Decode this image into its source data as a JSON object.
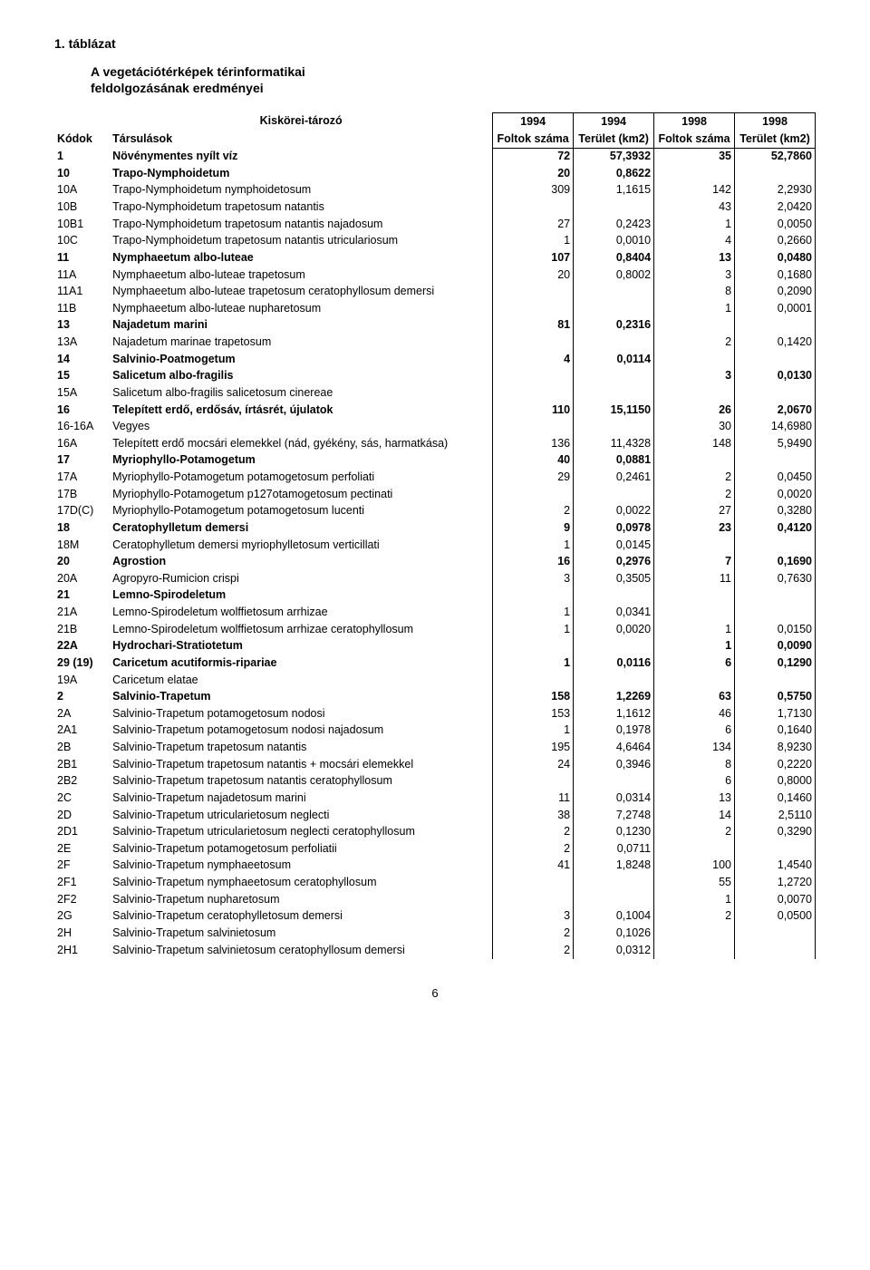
{
  "title1": "1. táblázat",
  "title2a": "A vegetációtérképek térinformatikai",
  "title2b": "feldolgozásának  eredményei",
  "header_top": [
    "",
    "Kiskörei-tározó",
    "1994",
    "1994",
    "1998",
    "1998"
  ],
  "header_row": [
    "Kódok",
    "Társulások",
    "Foltok száma",
    "Terület (km2)",
    "Foltok száma",
    "Terület (km2)"
  ],
  "rows": [
    {
      "b": true,
      "c": "1",
      "n": "Növénymentes nyílt víz",
      "v": [
        "72",
        "57,3932",
        "35",
        "52,7860"
      ]
    },
    {
      "b": true,
      "c": "10",
      "n": "Trapo-Nymphoidetum",
      "v": [
        "20",
        "0,8622",
        "",
        ""
      ]
    },
    {
      "b": false,
      "c": "10A",
      "n": "Trapo-Nymphoidetum nymphoidetosum",
      "v": [
        "309",
        "1,1615",
        "142",
        "2,2930"
      ]
    },
    {
      "b": false,
      "c": "10B",
      "n": "Trapo-Nymphoidetum trapetosum natantis",
      "v": [
        "",
        "",
        "43",
        "2,0420"
      ]
    },
    {
      "b": false,
      "c": "10B1",
      "n": "Trapo-Nymphoidetum trapetosum natantis najadosum",
      "v": [
        "27",
        "0,2423",
        "1",
        "0,0050"
      ]
    },
    {
      "b": false,
      "c": "10C",
      "n": "Trapo-Nymphoidetum trapetosum natantis utriculariosum",
      "v": [
        "1",
        "0,0010",
        "4",
        "0,2660"
      ]
    },
    {
      "b": true,
      "c": "11",
      "n": "Nymphaeetum albo-luteae",
      "v": [
        "107",
        "0,8404",
        "13",
        "0,0480"
      ]
    },
    {
      "b": false,
      "c": "11A",
      "n": "Nymphaeetum albo-luteae trapetosum",
      "v": [
        "20",
        "0,8002",
        "3",
        "0,1680"
      ]
    },
    {
      "b": false,
      "c": "11A1",
      "n": "Nymphaeetum albo-luteae trapetosum ceratophyllosum demersi",
      "v": [
        "",
        "",
        "8",
        "0,2090"
      ]
    },
    {
      "b": false,
      "c": "11B",
      "n": "Nymphaeetum albo-luteae nupharetosum",
      "v": [
        "",
        "",
        "1",
        "0,0001"
      ]
    },
    {
      "b": true,
      "c": "13",
      "n": "Najadetum marini",
      "v": [
        "81",
        "0,2316",
        "",
        ""
      ]
    },
    {
      "b": false,
      "c": "13A",
      "n": "Najadetum marinae trapetosum",
      "v": [
        "",
        "",
        "2",
        "0,1420"
      ]
    },
    {
      "b": true,
      "c": "14",
      "n": "Salvinio-Poatmogetum",
      "v": [
        "4",
        "0,0114",
        "",
        ""
      ]
    },
    {
      "b": true,
      "c": "15",
      "n": "Salicetum albo-fragilis",
      "v": [
        "",
        "",
        "3",
        "0,0130"
      ]
    },
    {
      "b": false,
      "c": "15A",
      "n": "Salicetum albo-fragilis salicetosum cinereae",
      "v": [
        "",
        "",
        "",
        ""
      ]
    },
    {
      "b": true,
      "c": "16",
      "n": "Telepített erdő, erdősáv, írtásrét, újulatok",
      "v": [
        "110",
        "15,1150",
        "26",
        "2,0670"
      ]
    },
    {
      "b": false,
      "c": "16-16A",
      "n": "Vegyes",
      "v": [
        "",
        "",
        "30",
        "14,6980"
      ]
    },
    {
      "b": false,
      "c": "16A",
      "n": "Telepített erdő mocsári elemekkel (nád, gyékény, sás, harmatkása)",
      "v": [
        "136",
        "11,4328",
        "148",
        "5,9490"
      ]
    },
    {
      "b": true,
      "c": "17",
      "n": "Myriophyllo-Potamogetum",
      "v": [
        "40",
        "0,0881",
        "",
        ""
      ]
    },
    {
      "b": false,
      "c": "17A",
      "n": "Myriophyllo-Potamogetum potamogetosum perfoliati",
      "v": [
        "29",
        "0,2461",
        "2",
        "0,0450"
      ]
    },
    {
      "b": false,
      "c": "17B",
      "n": "Myriophyllo-Potamogetum p127otamogetosum pectinati",
      "v": [
        "",
        "",
        "2",
        "0,0020"
      ]
    },
    {
      "b": false,
      "c": "17D(C)",
      "n": "Myriophyllo-Potamogetum potamogetosum lucenti",
      "v": [
        "2",
        "0,0022",
        "27",
        "0,3280"
      ]
    },
    {
      "b": true,
      "c": "18",
      "n": "Ceratophylletum demersi",
      "v": [
        "9",
        "0,0978",
        "23",
        "0,4120"
      ]
    },
    {
      "b": false,
      "c": "18M",
      "n": "Ceratophylletum demersi myriophylletosum verticillati",
      "v": [
        "1",
        "0,0145",
        "",
        ""
      ]
    },
    {
      "b": true,
      "c": "20",
      "n": "Agrostion",
      "v": [
        "16",
        "0,2976",
        "7",
        "0,1690"
      ]
    },
    {
      "b": false,
      "c": "20A",
      "n": "Agropyro-Rumicion crispi",
      "v": [
        "3",
        "0,3505",
        "11",
        "0,7630"
      ]
    },
    {
      "b": true,
      "c": "21",
      "n": "Lemno-Spirodeletum",
      "v": [
        "",
        "",
        "",
        ""
      ]
    },
    {
      "b": false,
      "c": "21A",
      "n": "Lemno-Spirodeletum wolffietosum arrhizae",
      "v": [
        "1",
        "0,0341",
        "",
        ""
      ]
    },
    {
      "b": false,
      "c": "21B",
      "n": "Lemno-Spirodeletum wolffietosum arrhizae ceratophyllosum",
      "v": [
        "1",
        "0,0020",
        "1",
        "0,0150"
      ]
    },
    {
      "b": true,
      "c": "22A",
      "n": "Hydrochari-Stratiotetum",
      "v": [
        "",
        "",
        "1",
        "0,0090"
      ]
    },
    {
      "b": true,
      "c": "29 (19)",
      "n": "Caricetum acutiformis-ripariae",
      "v": [
        "1",
        "0,0116",
        "6",
        "0,1290"
      ]
    },
    {
      "b": false,
      "c": "19A",
      "n": "Caricetum elatae",
      "v": [
        "",
        "",
        "",
        ""
      ]
    },
    {
      "b": true,
      "c": "2",
      "n": "Salvinio-Trapetum",
      "v": [
        "158",
        "1,2269",
        "63",
        "0,5750"
      ]
    },
    {
      "b": false,
      "c": "2A",
      "n": "Salvinio-Trapetum potamogetosum nodosi",
      "v": [
        "153",
        "1,1612",
        "46",
        "1,7130"
      ]
    },
    {
      "b": false,
      "c": "2A1",
      "n": "Salvinio-Trapetum potamogetosum nodosi najadosum",
      "v": [
        "1",
        "0,1978",
        "6",
        "0,1640"
      ]
    },
    {
      "b": false,
      "c": "2B",
      "n": "Salvinio-Trapetum trapetosum natantis",
      "v": [
        "195",
        "4,6464",
        "134",
        "8,9230"
      ]
    },
    {
      "b": false,
      "c": "2B1",
      "n": "Salvinio-Trapetum trapetosum natantis + mocsári elemekkel",
      "v": [
        "24",
        "0,3946",
        "8",
        "0,2220"
      ]
    },
    {
      "b": false,
      "c": "2B2",
      "n": "Salvinio-Trapetum trapetosum natantis ceratophyllosum",
      "v": [
        "",
        "",
        "6",
        "0,8000"
      ]
    },
    {
      "b": false,
      "c": "2C",
      "n": "Salvinio-Trapetum najadetosum marini",
      "v": [
        "11",
        "0,0314",
        "13",
        "0,1460"
      ]
    },
    {
      "b": false,
      "c": "2D",
      "n": "Salvinio-Trapetum utricularietosum neglecti",
      "v": [
        "38",
        "7,2748",
        "14",
        "2,5110"
      ]
    },
    {
      "b": false,
      "c": "2D1",
      "n": "Salvinio-Trapetum utricularietosum neglecti ceratophyllosum",
      "v": [
        "2",
        "0,1230",
        "2",
        "0,3290"
      ]
    },
    {
      "b": false,
      "c": "2E",
      "n": "Salvinio-Trapetum potamogetosum perfoliatii",
      "v": [
        "2",
        "0,0711",
        "",
        ""
      ]
    },
    {
      "b": false,
      "c": "2F",
      "n": "Salvinio-Trapetum nymphaeetosum",
      "v": [
        "41",
        "1,8248",
        "100",
        "1,4540"
      ]
    },
    {
      "b": false,
      "c": "2F1",
      "n": "Salvinio-Trapetum nymphaeetosum ceratophyllosum",
      "v": [
        "",
        "",
        "55",
        "1,2720"
      ]
    },
    {
      "b": false,
      "c": "2F2",
      "n": "Salvinio-Trapetum nupharetosum",
      "v": [
        "",
        "",
        "1",
        "0,0070"
      ]
    },
    {
      "b": false,
      "c": "2G",
      "n": "Salvinio-Trapetum ceratophylletosum demersi",
      "v": [
        "3",
        "0,1004",
        "2",
        "0,0500"
      ]
    },
    {
      "b": false,
      "c": "2H",
      "n": "Salvinio-Trapetum salvinietosum",
      "v": [
        "2",
        "0,1026",
        "",
        ""
      ]
    },
    {
      "b": false,
      "c": "2H1",
      "n": "Salvinio-Trapetum salvinietosum ceratophyllosum demersi",
      "v": [
        "2",
        "0,0312",
        "",
        ""
      ]
    }
  ],
  "page_number": "6"
}
